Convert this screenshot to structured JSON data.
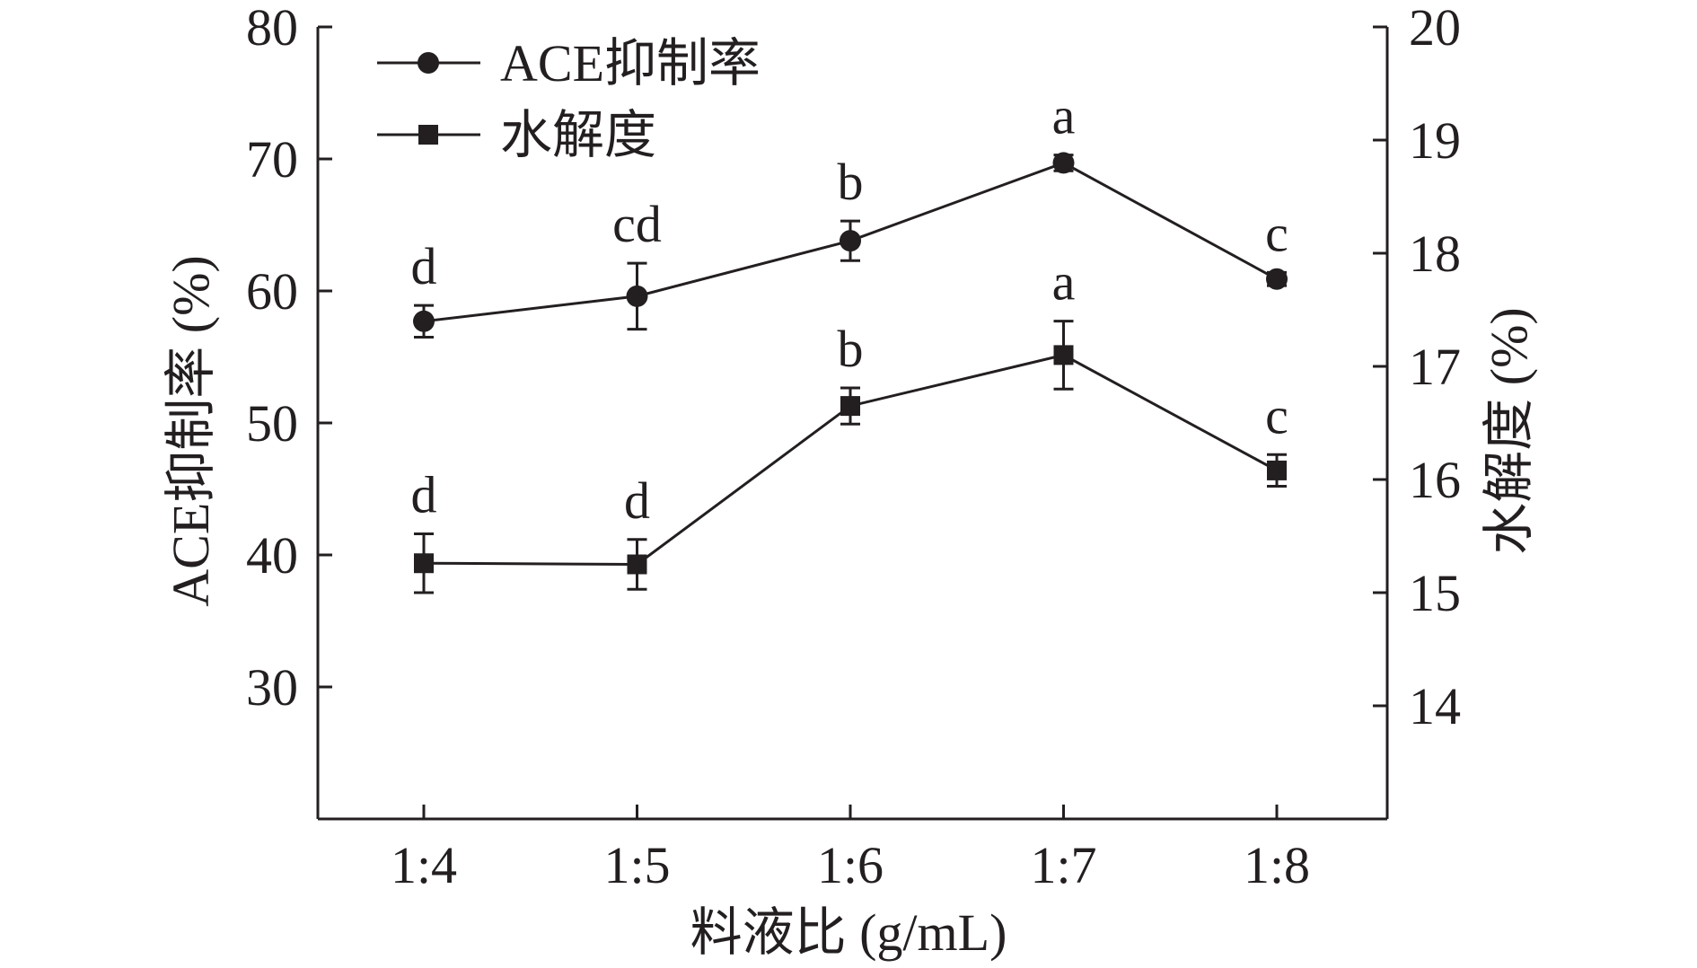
{
  "chart_data": {
    "type": "line",
    "categories": [
      "1:4",
      "1:5",
      "1:6",
      "1:7",
      "1:8"
    ],
    "xlabel": "料液比 (g/mL)",
    "ylabel_left": "ACE抑制率 (%)",
    "ylabel_right": "水解度 (%)",
    "ylim_left": [
      20,
      80
    ],
    "yticks_left": [
      30,
      40,
      50,
      60,
      70,
      80
    ],
    "ylim_right": [
      13,
      20
    ],
    "yticks_right": [
      14,
      15,
      16,
      17,
      18,
      19,
      20
    ],
    "grid": false,
    "legend_position": "top-left",
    "series": [
      {
        "name": "ACE抑制率",
        "axis": "left",
        "marker": "circle",
        "color": "#231f20",
        "values": [
          57.7,
          59.6,
          63.8,
          69.7,
          60.9
        ],
        "errors": [
          1.2,
          2.5,
          1.5,
          0.6,
          0.5
        ],
        "labels": [
          "d",
          "cd",
          "b",
          "a",
          "c"
        ]
      },
      {
        "name": "水解度",
        "axis": "right",
        "marker": "square",
        "color": "#231f20",
        "values": [
          15.26,
          15.25,
          16.65,
          17.1,
          16.08
        ],
        "errors": [
          0.26,
          0.22,
          0.16,
          0.3,
          0.14
        ],
        "labels": [
          "d",
          "d",
          "b",
          "a",
          "c"
        ]
      }
    ]
  }
}
